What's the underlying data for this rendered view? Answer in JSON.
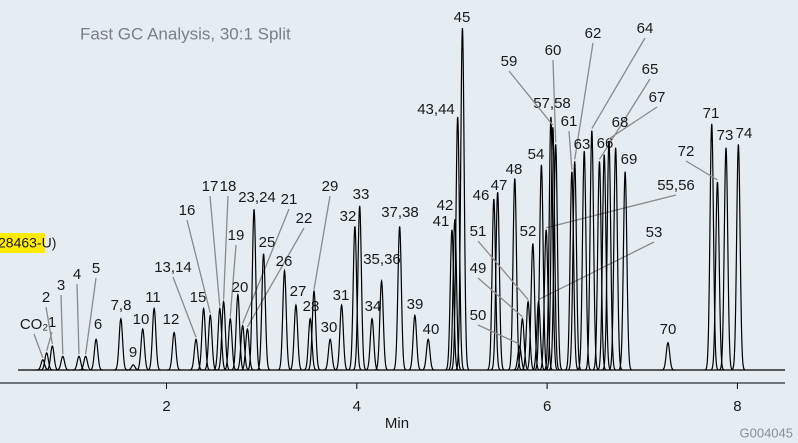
{
  "chart_data": {
    "type": "chromatogram",
    "title": "Fast GC Analysis, 30:1 Split",
    "xlabel": "Min",
    "code": "G004045",
    "side_note": "28463-U)",
    "peak_labels": [
      "CO₂",
      "1",
      "2",
      "3",
      "4",
      "5",
      "6",
      "7,8",
      "9",
      "10",
      "11",
      "12",
      "13,14",
      "15",
      "16",
      "17",
      "18",
      "19",
      "20",
      "21",
      "22",
      "23,24",
      "25",
      "26",
      "27",
      "28",
      "29",
      "30",
      "31",
      "32",
      "33",
      "34",
      "35,36",
      "37,38",
      "39",
      "40",
      "41",
      "42",
      "43,44",
      "45",
      "46",
      "47",
      "48",
      "49",
      "50",
      "51",
      "52",
      "53",
      "54",
      "55,56",
      "57,58",
      "59",
      "60",
      "61",
      "62",
      "63",
      "64",
      "65",
      "66",
      "67",
      "68",
      "69",
      "70",
      "71",
      "72",
      "73",
      "74"
    ],
    "x": [
      0.7,
      0.74,
      0.8,
      0.91,
      1.08,
      1.15,
      1.26,
      1.52,
      1.65,
      1.75,
      1.87,
      2.08,
      2.31,
      2.39,
      2.46,
      2.56,
      2.6,
      2.67,
      2.75,
      2.8,
      2.85,
      2.92,
      3.02,
      3.24,
      3.36,
      3.51,
      3.55,
      3.72,
      3.84,
      3.98,
      4.03,
      4.16,
      4.26,
      4.45,
      4.61,
      4.75,
      5.0,
      5.03,
      5.06,
      5.11,
      5.44,
      5.48,
      5.66,
      5.74,
      5.71,
      5.8,
      5.85,
      5.91,
      5.94,
      5.99,
      6.04,
      6.06,
      6.09,
      6.26,
      6.29,
      6.39,
      6.47,
      6.55,
      6.6,
      6.65,
      6.72,
      6.82,
      7.27,
      7.73,
      7.79,
      7.88,
      8.01
    ],
    "values": [
      3,
      5,
      7,
      4,
      4,
      4,
      9,
      15,
      1.5,
      12,
      18,
      11,
      9,
      18,
      16,
      18,
      20,
      15,
      22,
      13,
      12,
      47,
      34,
      29,
      19,
      15,
      23,
      9,
      19,
      42,
      48,
      15,
      26,
      42,
      16,
      9,
      41,
      44,
      74,
      100,
      50,
      52,
      56,
      15,
      7,
      20,
      37,
      20,
      60,
      41,
      74,
      71,
      66,
      58,
      61,
      64,
      70,
      61,
      63,
      67,
      65,
      58,
      8,
      72,
      55,
      65,
      66
    ],
    "xlim": [
      0.25,
      8.5
    ],
    "ylim": [
      0,
      100
    ],
    "xticks": [
      2,
      4,
      6,
      8
    ],
    "color": "#000000"
  }
}
